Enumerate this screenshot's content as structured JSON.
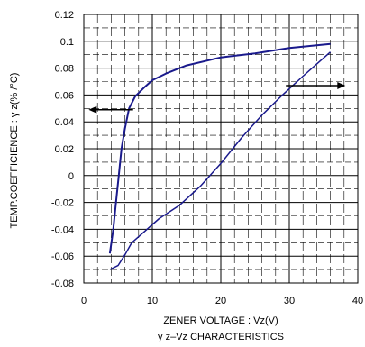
{
  "chart_data": {
    "type": "line",
    "xlabel": "ZENER VOLTAGE : Vz(V)",
    "ylabel": "TEMP.COEFFICIENCE : γ z(% /°C)",
    "caption": "γ z–Vz CHARACTERISTICS",
    "xlim": [
      0,
      40
    ],
    "ylim": [
      -0.08,
      0.12
    ],
    "x_ticks": [
      0,
      10,
      20,
      30,
      40
    ],
    "x_tick_labels": [
      "0",
      "10",
      "20",
      "30",
      "40"
    ],
    "y_ticks": [
      -0.08,
      -0.06,
      -0.04,
      -0.02,
      0,
      0.02,
      0.04,
      0.06,
      0.08,
      0.1,
      0.12
    ],
    "y_tick_labels": [
      "-0.08",
      "-0.06",
      "-0.04",
      "-0.02",
      "0",
      "0.02",
      "0.04",
      "0.06",
      "0.08",
      "0.1",
      "0.12"
    ],
    "grid": true,
    "colors": {
      "series": "#1a1a8c",
      "arrow": "#000000",
      "grid": "#000000"
    },
    "series": [
      {
        "points": [
          [
            3.8,
            -0.058
          ],
          [
            4.3,
            -0.04
          ],
          [
            4.7,
            -0.02
          ],
          [
            5.1,
            0.0
          ],
          [
            5.5,
            0.02
          ],
          [
            6.0,
            0.035
          ],
          [
            6.6,
            0.05
          ],
          [
            7.5,
            0.059
          ],
          [
            8.7,
            0.065
          ],
          [
            10,
            0.071
          ],
          [
            12,
            0.076
          ],
          [
            15,
            0.082
          ],
          [
            20,
            0.088
          ],
          [
            25,
            0.091
          ],
          [
            30,
            0.095
          ],
          [
            36,
            0.098
          ]
        ],
        "arrow": {
          "from_x": 7.2,
          "to_x": 0.7,
          "y": 0.049
        }
      },
      {
        "points": [
          [
            3.8,
            -0.07
          ],
          [
            5,
            -0.067
          ],
          [
            6,
            -0.059
          ],
          [
            7,
            -0.05
          ],
          [
            9,
            -0.041
          ],
          [
            11,
            -0.032
          ],
          [
            14,
            -0.022
          ],
          [
            17,
            -0.008
          ],
          [
            20,
            0.009
          ],
          [
            23,
            0.028
          ],
          [
            26,
            0.045
          ],
          [
            29,
            0.06
          ],
          [
            32,
            0.074
          ],
          [
            34,
            0.083
          ],
          [
            36,
            0.092
          ]
        ],
        "arrow": {
          "from_x": 29.5,
          "to_x": 38.2,
          "y": 0.067
        }
      }
    ]
  }
}
